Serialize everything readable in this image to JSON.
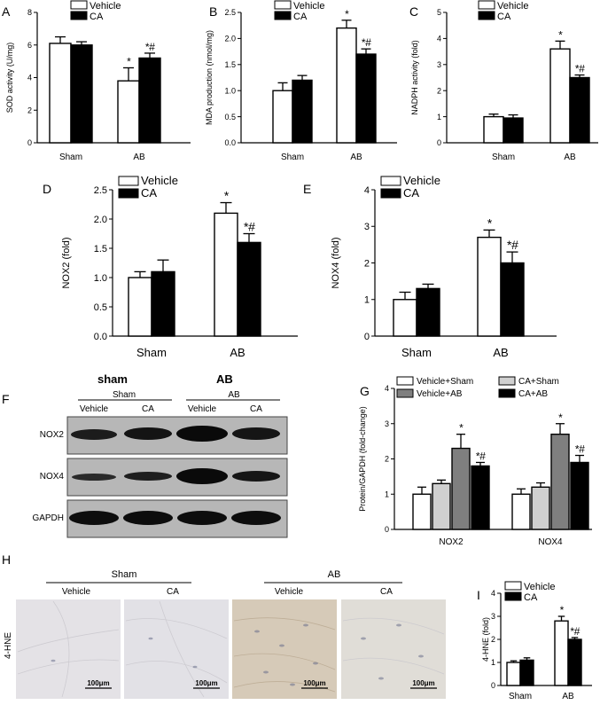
{
  "chart_data": [
    {
      "panel": "A",
      "type": "bar",
      "ylabel": "SOD activity (U/mg)",
      "categories": [
        "Sham",
        "AB"
      ],
      "ylim": [
        0,
        8
      ],
      "ticks": [
        0,
        2,
        4,
        6,
        8
      ],
      "series": [
        {
          "name": "Vehicle",
          "values": [
            6.1,
            3.8
          ],
          "errors": [
            0.4,
            0.8
          ]
        },
        {
          "name": "CA",
          "values": [
            6.0,
            5.2
          ],
          "errors": [
            0.2,
            0.3
          ]
        }
      ],
      "annotations": [
        {
          "category": 1,
          "series": 0,
          "text": "*"
        },
        {
          "category": 1,
          "series": 1,
          "text": "*#"
        }
      ]
    },
    {
      "panel": "B",
      "type": "bar",
      "ylabel": "MDA production (nmol/mg)",
      "categories": [
        "Sham",
        "AB"
      ],
      "ylim": [
        0,
        2.5
      ],
      "ticks": [
        0.0,
        0.5,
        1.0,
        1.5,
        2.0,
        2.5
      ],
      "series": [
        {
          "name": "Vehicle",
          "values": [
            1.0,
            2.2
          ],
          "errors": [
            0.15,
            0.15
          ]
        },
        {
          "name": "CA",
          "values": [
            1.2,
            1.7
          ],
          "errors": [
            0.09,
            0.1
          ]
        }
      ],
      "annotations": [
        {
          "category": 1,
          "series": 0,
          "text": "*"
        },
        {
          "category": 1,
          "series": 1,
          "text": "*#"
        }
      ]
    },
    {
      "panel": "C",
      "type": "bar",
      "ylabel": "NADPH activity (fold)",
      "categories": [
        "Sham",
        "AB"
      ],
      "ylim": [
        0,
        5
      ],
      "ticks": [
        0,
        1,
        2,
        3,
        4,
        5
      ],
      "series": [
        {
          "name": "Vehicle",
          "values": [
            1.0,
            3.6
          ],
          "errors": [
            0.1,
            0.3
          ]
        },
        {
          "name": "CA",
          "values": [
            0.95,
            2.5
          ],
          "errors": [
            0.12,
            0.1
          ]
        }
      ],
      "annotations": [
        {
          "category": 1,
          "series": 0,
          "text": "*"
        },
        {
          "category": 1,
          "series": 1,
          "text": "*#"
        }
      ]
    },
    {
      "panel": "D",
      "type": "bar",
      "ylabel": "NOX2 (fold)",
      "categories": [
        "Sham",
        "AB"
      ],
      "ylim": [
        0,
        2.5
      ],
      "ticks": [
        0.0,
        0.5,
        1.0,
        1.5,
        2.0,
        2.5
      ],
      "series": [
        {
          "name": "Vehicle",
          "values": [
            1.0,
            2.1
          ],
          "errors": [
            0.1,
            0.18
          ]
        },
        {
          "name": "CA",
          "values": [
            1.1,
            1.6
          ],
          "errors": [
            0.2,
            0.15
          ]
        }
      ],
      "annotations": [
        {
          "category": 1,
          "series": 0,
          "text": "*"
        },
        {
          "category": 1,
          "series": 1,
          "text": "*#"
        }
      ]
    },
    {
      "panel": "E",
      "type": "bar",
      "ylabel": "NOX4 (fold)",
      "categories": [
        "Sham",
        "AB"
      ],
      "ylim": [
        0,
        4
      ],
      "ticks": [
        0,
        1,
        2,
        3,
        4
      ],
      "series": [
        {
          "name": "Vehicle",
          "values": [
            1.0,
            2.7
          ],
          "errors": [
            0.2,
            0.2
          ]
        },
        {
          "name": "CA",
          "values": [
            1.3,
            2.0
          ],
          "errors": [
            0.12,
            0.3
          ]
        }
      ],
      "annotations": [
        {
          "category": 1,
          "series": 0,
          "text": "*"
        },
        {
          "category": 1,
          "series": 1,
          "text": "*#"
        }
      ]
    },
    {
      "panel": "G",
      "type": "bar",
      "ylabel": "Protein/GAPDH (fold-change)",
      "categories": [
        "NOX2",
        "NOX4"
      ],
      "ylim": [
        0,
        4
      ],
      "ticks": [
        0,
        1,
        2,
        3,
        4
      ],
      "series": [
        {
          "name": "Vehicle+Sham",
          "values": [
            1.0,
            1.0
          ],
          "errors": [
            0.2,
            0.15
          ]
        },
        {
          "name": "CA+Sham",
          "values": [
            1.3,
            1.2
          ],
          "errors": [
            0.1,
            0.12
          ]
        },
        {
          "name": "Vehicle+AB",
          "values": [
            2.3,
            2.7
          ],
          "errors": [
            0.4,
            0.3
          ]
        },
        {
          "name": "CA+AB",
          "values": [
            1.8,
            1.9
          ],
          "errors": [
            0.1,
            0.2
          ]
        }
      ],
      "annotations": [
        {
          "category": 0,
          "series": 2,
          "text": "*"
        },
        {
          "category": 0,
          "series": 3,
          "text": "*#"
        },
        {
          "category": 1,
          "series": 2,
          "text": "*"
        },
        {
          "category": 1,
          "series": 3,
          "text": "*#"
        }
      ]
    },
    {
      "panel": "I",
      "type": "bar",
      "ylabel": "4-HNE (fold)",
      "categories": [
        "Sham",
        "AB"
      ],
      "ylim": [
        0,
        4
      ],
      "ticks": [
        0,
        1,
        2,
        3,
        4
      ],
      "series": [
        {
          "name": "Vehicle",
          "values": [
            1.0,
            2.8
          ],
          "errors": [
            0.07,
            0.2
          ]
        },
        {
          "name": "CA",
          "values": [
            1.1,
            2.0
          ],
          "errors": [
            0.1,
            0.08
          ]
        }
      ],
      "annotations": [
        {
          "category": 1,
          "series": 0,
          "text": "*"
        },
        {
          "category": 1,
          "series": 1,
          "text": "*#"
        }
      ]
    }
  ],
  "series_colors": {
    "Vehicle": "#ffffff",
    "CA": "#000000",
    "Vehicle+Sham": "#ffffff",
    "CA+Sham": "#d0d0d0",
    "Vehicle+AB": "#7f7f7f",
    "CA+AB": "#000000"
  },
  "western_blot": {
    "panel": "F",
    "groups": [
      "Sham",
      "AB"
    ],
    "lanes": [
      "Vehicle",
      "CA",
      "Vehicle",
      "CA"
    ],
    "rows": [
      "NOX2",
      "NOX4",
      "GAPDH"
    ],
    "cut_header": [
      "sham",
      "AB"
    ]
  },
  "histology": {
    "panel": "H",
    "row_label": "4-HNE",
    "groups": [
      "Sham",
      "AB"
    ],
    "columns": [
      "Vehicle",
      "CA",
      "Vehicle",
      "CA"
    ],
    "scale_bar": "100μm",
    "tint": [
      "#e4e2e6",
      "#e2e1e6",
      "#d6cab8",
      "#e0ddd7"
    ]
  }
}
